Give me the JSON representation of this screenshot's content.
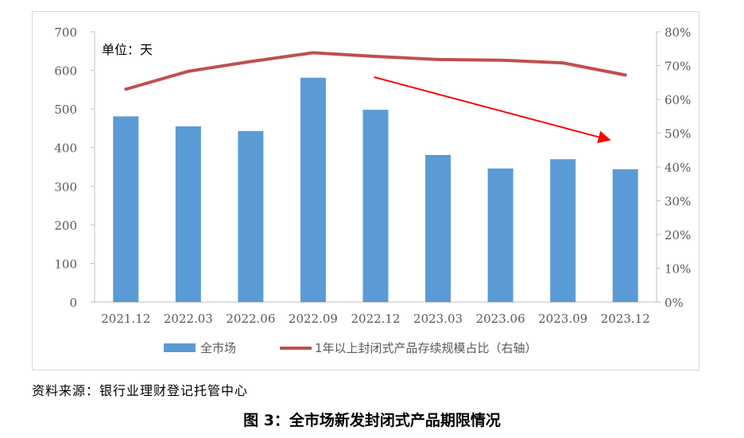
{
  "figure_caption": "图 3：全市场新发封闭式产品期限情况",
  "source_note": "资料来源：银行业理财登记托管中心",
  "chart_data": {
    "type": "bar",
    "unit_note": "单位：天",
    "categories": [
      "2021.12",
      "2022.03",
      "2022.06",
      "2022.09",
      "2022.12",
      "2023.03",
      "2023.06",
      "2023.09",
      "2023.12"
    ],
    "series": [
      {
        "name": "全市场",
        "type": "bar",
        "axis": "left",
        "color": "#5b9bd5",
        "values": [
          481,
          455,
          443,
          581,
          498,
          381,
          346,
          370,
          344
        ]
      },
      {
        "name": "1年以上封闭式产品存续规模占比（右轴）",
        "type": "line",
        "axis": "right",
        "color": "#c0504d",
        "values": [
          63,
          68.3,
          71.2,
          73.8,
          72.7,
          71.8,
          71.6,
          70.8,
          67.2
        ]
      }
    ],
    "y_left": {
      "range": [
        0,
        700
      ],
      "ticks": [
        "0",
        "100",
        "200",
        "300",
        "400",
        "500",
        "600",
        "700"
      ]
    },
    "y_right": {
      "range": [
        0,
        80
      ],
      "ticks": [
        "0%",
        "10%",
        "20%",
        "30%",
        "40%",
        "50%",
        "60%",
        "70%",
        "80%"
      ]
    },
    "grid": false,
    "legend_position": "bottom",
    "annotation": {
      "type": "arrow",
      "color": "#ff0000",
      "from_category": "2022.12",
      "to_category": "2023.12",
      "description": "red downward arrow"
    }
  }
}
